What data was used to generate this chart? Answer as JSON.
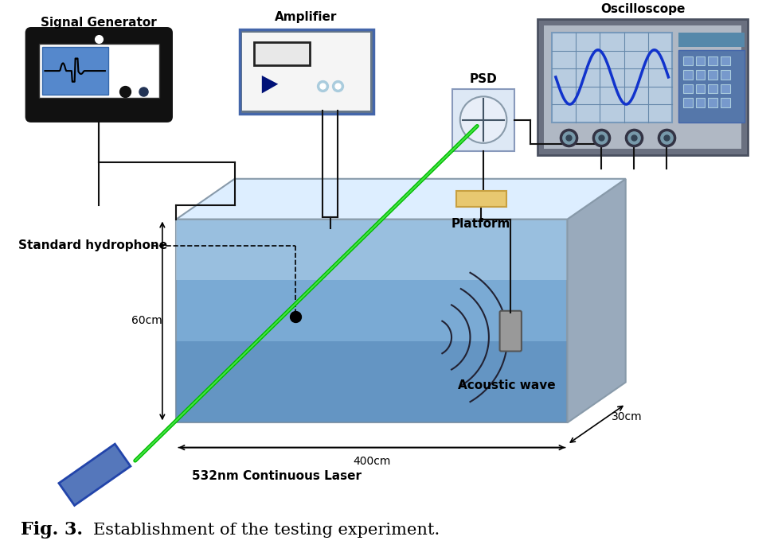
{
  "title": "Fig. 3.",
  "subtitle": "Establishment of the testing experiment.",
  "bg_color": "#ffffff",
  "figsize": [
    9.72,
    7.04
  ],
  "dpi": 100,
  "labels": {
    "signal_generator": "Signal Generator",
    "amplifier": "Amplifier",
    "psd": "PSD",
    "oscilloscope": "Oscilloscope",
    "platform": "Platform",
    "standard_hydrophone": "Standard hydrophone",
    "acoustic_wave": "Acoustic wave",
    "laser": "532nm Continuous Laser",
    "dim_60": "60cm",
    "dim_400": "400cm ←",
    "dim_30": "30cm"
  },
  "colors": {
    "sg_body": "#111111",
    "sg_screen_bg": "#ffffff",
    "sg_screen_blue": "#5588cc",
    "amp_body_outer": "#555566",
    "amp_body_inner": "#f0f0f0",
    "amp_border_blue": "#5577aa",
    "osc_body": "#555566",
    "osc_screen": "#aabbd4",
    "osc_screen_grid": "#7799bb",
    "osc_wave": "#1133cc",
    "osc_btn_panel": "#6688aa",
    "osc_btn_bg": "#7799bb",
    "psd_circle": "#d8e4ef",
    "psd_box": "#ccddef",
    "psd_border": "#8899aa",
    "platform": "#e8c870",
    "tank_front": "#6699cc",
    "tank_front_top": "#99bbdd",
    "tank_right": "#aabbcc",
    "tank_top": "#cce0f0",
    "tank_edge": "#888899",
    "wave_color": "#222233",
    "hydrophone": "#999999",
    "laser_body": "#4466aa",
    "laser_edge": "#223388",
    "beam_color": "#00cc00",
    "beam_glow": "#88ff44",
    "wire_color": "#111111",
    "arrow_color": "#111111",
    "text_color": "#000000"
  }
}
